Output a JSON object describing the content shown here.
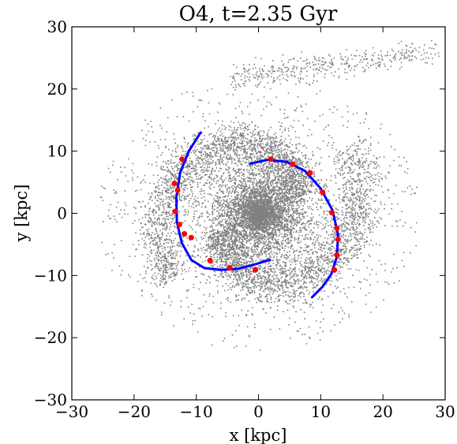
{
  "chart_data": {
    "type": "scatter",
    "title": "O4, t=2.35 Gyr",
    "xlabel": "x [kpc]",
    "ylabel": "y [kpc]",
    "xlim": [
      -30,
      30
    ],
    "ylim": [
      -30,
      30
    ],
    "xticks": [
      -30,
      -20,
      -10,
      0,
      10,
      20,
      30
    ],
    "yticks": [
      -30,
      -20,
      -10,
      0,
      10,
      20,
      30
    ],
    "xtick_labels": [
      "−30",
      "−20",
      "−10",
      "0",
      "10",
      "20",
      "30"
    ],
    "ytick_labels": [
      "−30",
      "−20",
      "−10",
      "0",
      "10",
      "20",
      "30"
    ],
    "grid": false,
    "colors": {
      "particles": "#808080",
      "spiral_fit": "#0000ff",
      "arm_points": "#ff0000"
    },
    "spiral_arms": [
      {
        "x": [
          -9.3,
          -11.2,
          -12.6,
          -13.2,
          -13.1,
          -12.3,
          -10.8,
          -8.7,
          -6.1,
          -3.2,
          -0.5,
          1.8
        ],
        "y": [
          13.0,
          10.0,
          6.5,
          2.5,
          -1.5,
          -4.8,
          -7.5,
          -8.8,
          -9.1,
          -8.9,
          -8.2,
          -7.5
        ]
      },
      {
        "x": [
          -1.3,
          1.5,
          4.5,
          7.5,
          10.0,
          11.9,
          12.8,
          12.6,
          11.7,
          10.3,
          8.6
        ],
        "y": [
          8.0,
          8.6,
          8.3,
          6.8,
          4.0,
          0.5,
          -3.5,
          -7.0,
          -9.8,
          -11.8,
          -13.5
        ]
      }
    ],
    "arm_points": {
      "x": [
        -12.3,
        -13.0,
        -13.5,
        -13.4,
        -12.7,
        -11.9,
        -10.8,
        -7.8,
        -4.6,
        -0.5,
        2.0,
        5.5,
        8.3,
        10.3,
        11.8,
        12.6,
        12.8,
        12.6,
        12.2
      ],
      "y": [
        8.7,
        3.7,
        4.8,
        0.3,
        -1.8,
        -3.3,
        -3.9,
        -7.6,
        -8.8,
        -9.1,
        8.7,
        7.9,
        6.5,
        3.4,
        0.1,
        -2.4,
        -4.2,
        -6.7,
        -9.1
      ]
    }
  }
}
